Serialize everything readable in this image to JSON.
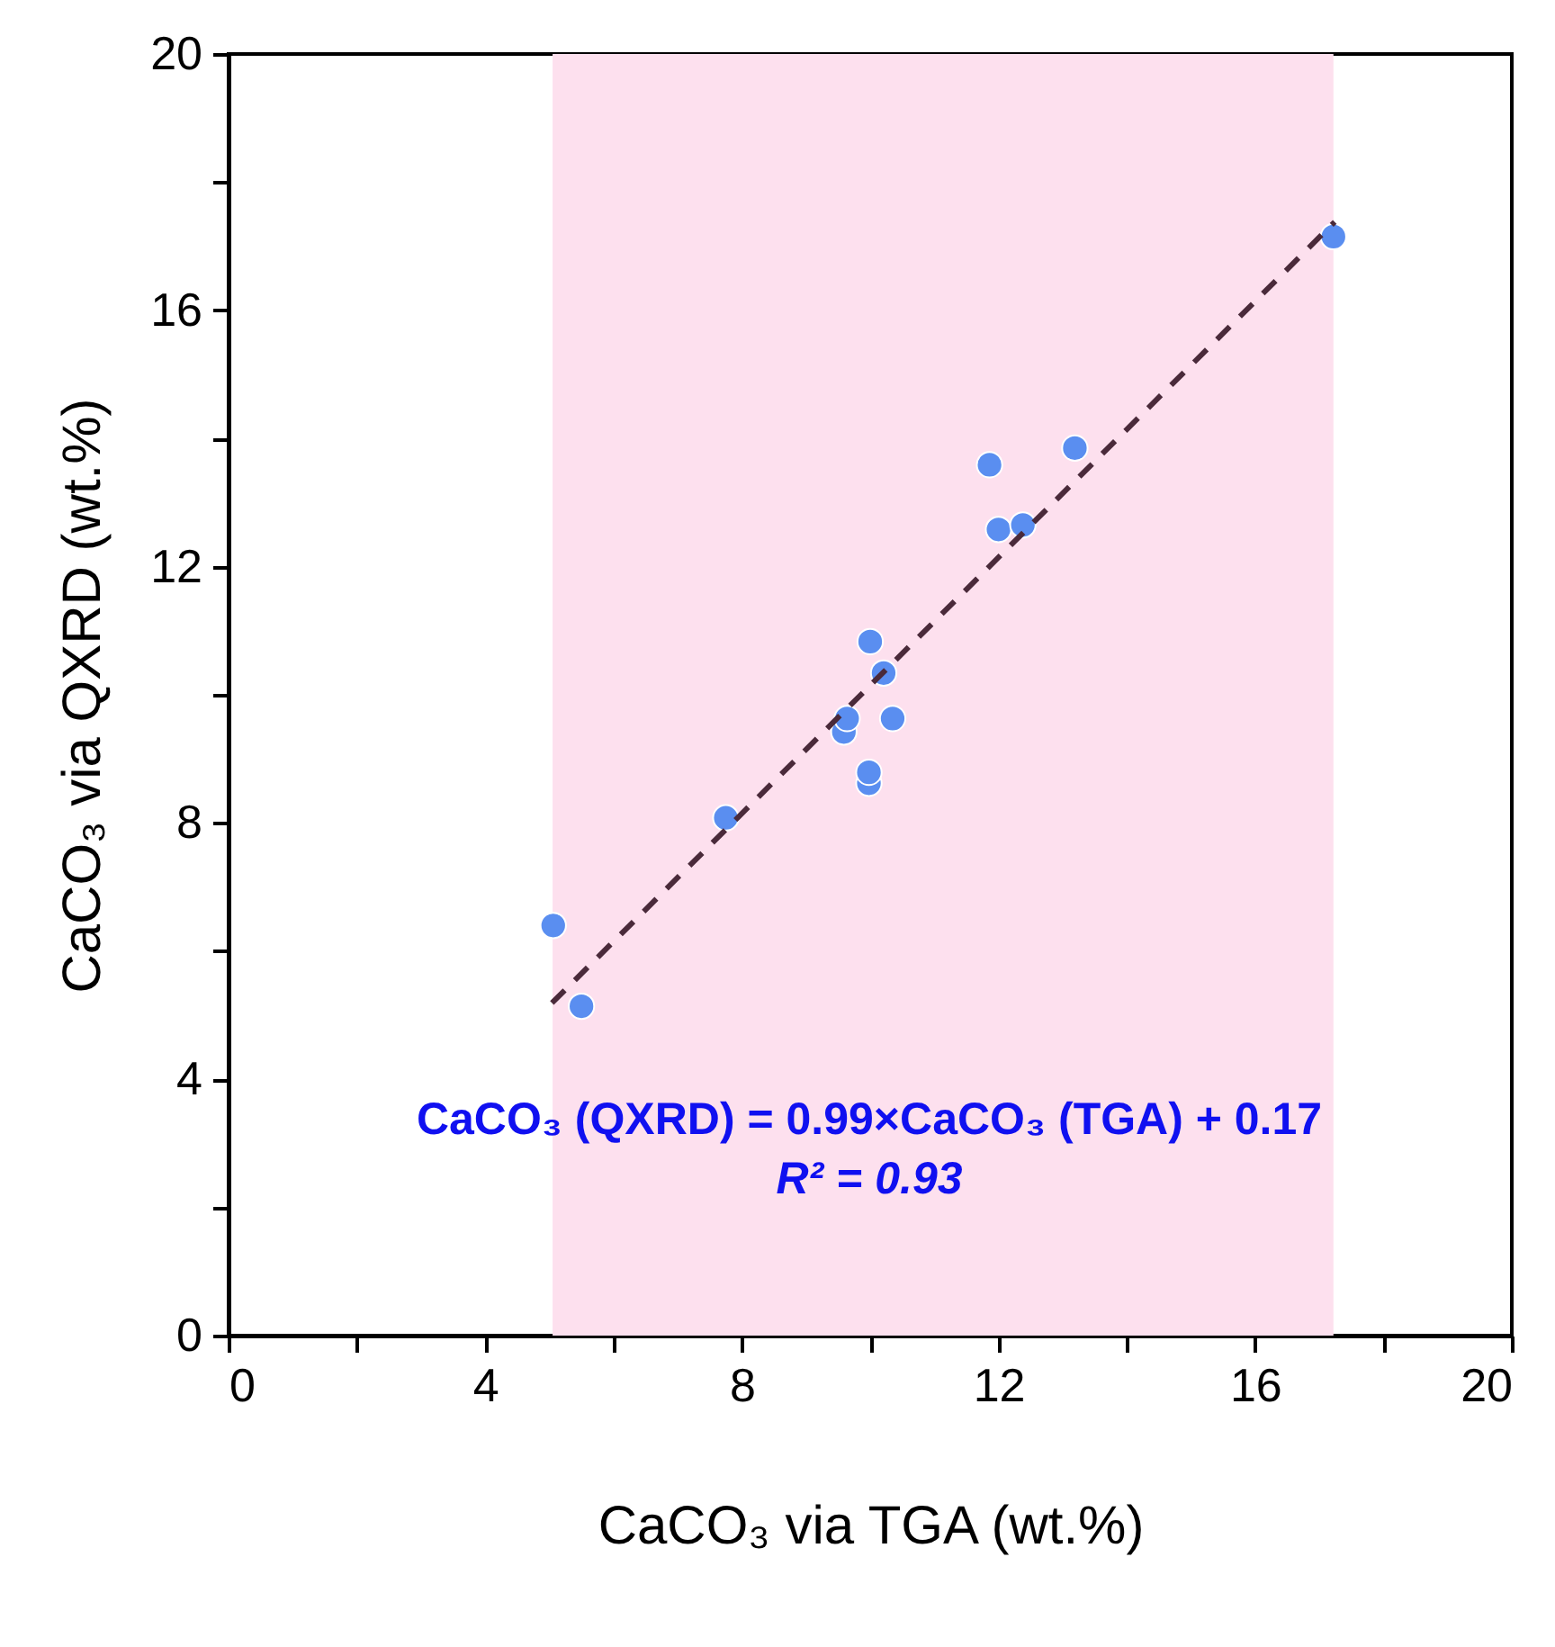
{
  "chart_data": {
    "type": "scatter",
    "xlabel": "CaCO₃ via TGA (wt.%)",
    "ylabel": "CaCO₃ via QXRD (wt.%)",
    "xlim": [
      0,
      20
    ],
    "ylim": [
      0,
      20
    ],
    "xticks": [
      0,
      {
        "value": 2,
        "label": null
      },
      4,
      {
        "value": 6,
        "label": null
      },
      8,
      {
        "value": 10,
        "label": null
      },
      12,
      {
        "value": 14,
        "label": null
      },
      16,
      {
        "value": 18,
        "label": null
      },
      20
    ],
    "yticks": [
      0,
      {
        "value": 2,
        "label": null
      },
      4,
      {
        "value": 6,
        "label": null
      },
      8,
      {
        "value": 10,
        "label": null
      },
      12,
      {
        "value": 14,
        "label": null
      },
      16,
      {
        "value": 18,
        "label": null
      },
      20
    ],
    "grid": false,
    "marker": "circle",
    "bands": [
      {
        "axis": "x",
        "from": 5.05,
        "to": 17.22,
        "color": "#fde0ee"
      }
    ],
    "series": [
      {
        "color": "#5a8ef0",
        "x": [
          5.06,
          5.5,
          7.75,
          9.59,
          9.64,
          9.98,
          9.98,
          10.35,
          10.21,
          10.0,
          11.86,
          12.0,
          12.38,
          13.19,
          17.22
        ],
        "values": [
          6.4,
          5.14,
          8.08,
          9.42,
          9.63,
          8.62,
          8.79,
          9.63,
          10.34,
          10.83,
          13.59,
          12.58,
          12.65,
          13.85,
          17.15
        ]
      },
      {
        "type": "line",
        "color": "#4a2a3a",
        "line_style": "dashed",
        "marker": "none",
        "x": [
          5.04,
          17.24
        ],
        "values": [
          5.19,
          17.38
        ]
      }
    ],
    "annotations": [
      "CaCO₃ (QXRD) = 0.99×CaCO₃ (TGA) + 0.17",
      "R² = 0.93"
    ]
  }
}
